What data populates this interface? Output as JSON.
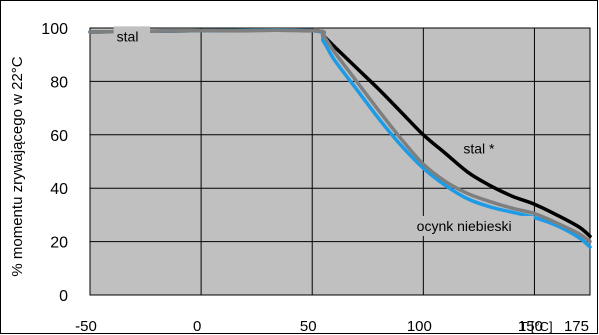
{
  "chart_data": {
    "type": "line",
    "title": "",
    "ylabel": "% momentu zrywającego w 22°C",
    "xlabel": "T [°C]",
    "xlim": [
      -50,
      175
    ],
    "ylim": [
      0,
      100
    ],
    "grid": true,
    "x_ticks": [
      -50,
      0,
      50,
      100,
      150,
      175
    ],
    "y_ticks": [
      0,
      20,
      40,
      60,
      80,
      100
    ],
    "series": [
      {
        "name": "stal",
        "color": "#7f7f7f",
        "points": [
          [
            -50,
            98.5
          ],
          [
            0,
            99
          ],
          [
            50,
            99
          ],
          [
            55,
            97
          ],
          [
            60,
            91
          ],
          [
            70,
            80
          ],
          [
            80,
            69
          ],
          [
            90,
            58.5
          ],
          [
            100,
            49
          ],
          [
            110,
            42.5
          ],
          [
            120,
            38
          ],
          [
            130,
            35
          ],
          [
            140,
            32.5
          ],
          [
            150,
            30.5
          ],
          [
            160,
            27
          ],
          [
            170,
            23
          ],
          [
            175,
            20
          ]
        ]
      },
      {
        "name": "stal *",
        "color": "#000000",
        "points": [
          [
            -50,
            98.5
          ],
          [
            0,
            99
          ],
          [
            50,
            99
          ],
          [
            55,
            97
          ],
          [
            60,
            93
          ],
          [
            70,
            85
          ],
          [
            80,
            77
          ],
          [
            90,
            68.5
          ],
          [
            100,
            60
          ],
          [
            110,
            53
          ],
          [
            120,
            46
          ],
          [
            130,
            41
          ],
          [
            140,
            37
          ],
          [
            150,
            34
          ],
          [
            160,
            30
          ],
          [
            170,
            25.5
          ],
          [
            175,
            22
          ]
        ]
      },
      {
        "name": "ocynk niebieski",
        "color": "#1e9be6",
        "points": [
          [
            -50,
            98.5
          ],
          [
            0,
            99
          ],
          [
            50,
            99
          ],
          [
            55,
            95
          ],
          [
            60,
            88
          ],
          [
            70,
            77
          ],
          [
            80,
            66
          ],
          [
            90,
            56
          ],
          [
            100,
            47.5
          ],
          [
            110,
            41
          ],
          [
            120,
            36
          ],
          [
            130,
            33
          ],
          [
            140,
            31
          ],
          [
            150,
            29
          ],
          [
            160,
            26
          ],
          [
            170,
            21.5
          ],
          [
            175,
            18
          ]
        ]
      }
    ],
    "annotations": [
      {
        "text": "stal",
        "x": -38,
        "y": 95
      },
      {
        "text": "stal *",
        "x": 118,
        "y": 53
      },
      {
        "text": "ocynk niebieski",
        "x": 97,
        "y": 24
      }
    ],
    "plot_background": "#c0c0c0"
  }
}
